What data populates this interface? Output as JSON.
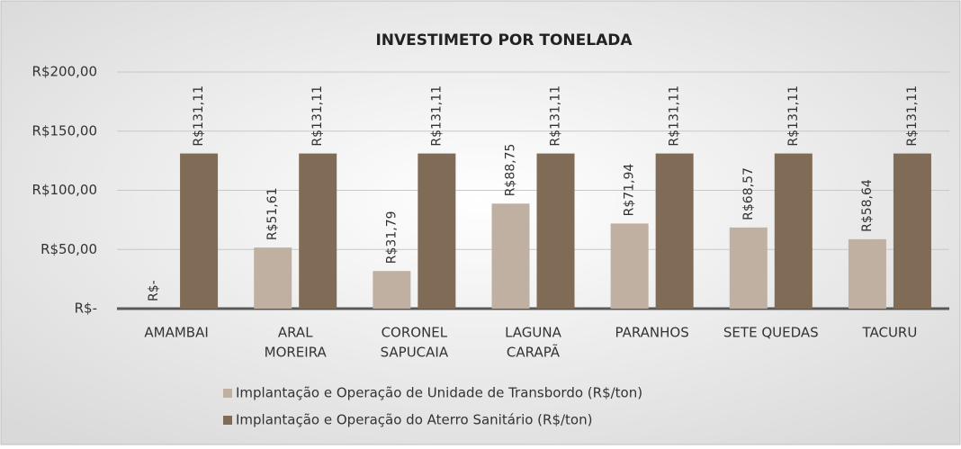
{
  "chart_data": {
    "type": "bar",
    "title": "INVESTIMETO POR TONELADA",
    "categories": [
      [
        "AMAMBAI"
      ],
      [
        "ARAL",
        "MOREIRA"
      ],
      [
        "CORONEL",
        "SAPUCAIA"
      ],
      [
        "LAGUNA",
        "CARAPÃ"
      ],
      [
        "PARANHOS"
      ],
      [
        "SETE QUEDAS"
      ],
      [
        "TACURU"
      ]
    ],
    "series": [
      {
        "name": "Implantação e Operação de Unidade de Transbordo (R$/ton)",
        "color": "#bfb0a2",
        "values": [
          0,
          51.61,
          31.79,
          88.75,
          71.94,
          68.57,
          58.64
        ],
        "value_labels": [
          "R$-",
          "R$51,61",
          "R$31,79",
          "R$88,75",
          "R$71,94",
          "R$68,57",
          "R$58,64"
        ]
      },
      {
        "name": "Implantação e Operação do Aterro Sanitário (R$/ton)",
        "color": "#7f6b56",
        "values": [
          131.11,
          131.11,
          131.11,
          131.11,
          131.11,
          131.11,
          131.11
        ],
        "value_labels": [
          "R$131,11",
          "R$131,11",
          "R$131,11",
          "R$131,11",
          "R$131,11",
          "R$131,11",
          "R$131,11"
        ]
      }
    ],
    "ylim": [
      0,
      200
    ],
    "yticks": [
      {
        "value": 0,
        "label": "R$-"
      },
      {
        "value": 50,
        "label": "R$50,00"
      },
      {
        "value": 100,
        "label": "R$100,00"
      },
      {
        "value": 150,
        "label": "R$150,00"
      },
      {
        "value": 200,
        "label": "R$200,00"
      }
    ],
    "grid": true,
    "legend": "bottom"
  }
}
